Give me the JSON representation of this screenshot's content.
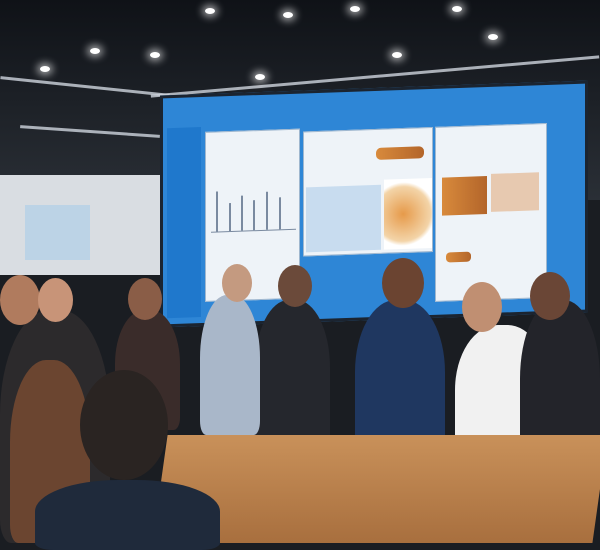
{
  "scene": {
    "description_tags": [
      "conference",
      "display-screen",
      "crowd",
      "table"
    ],
    "colors": {
      "screen": "#2e86d6",
      "table": "#c9915a",
      "ceiling": "#0f1217"
    }
  }
}
